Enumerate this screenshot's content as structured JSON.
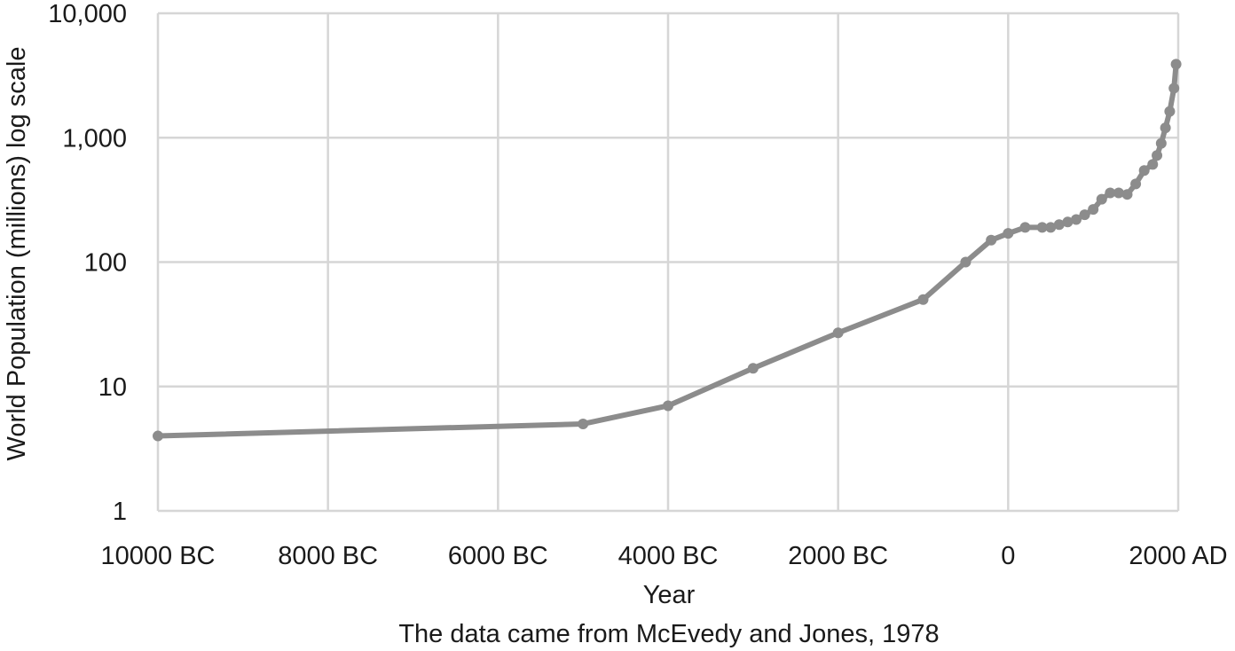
{
  "chart_data": {
    "type": "line",
    "title": "",
    "xlabel": "Year",
    "ylabel": "World Population (millions) log scale",
    "note": "The data came from McEvedy and Jones, 1978",
    "y_scale": "log",
    "ylim": [
      1,
      10000
    ],
    "xlim": [
      -10000,
      2000
    ],
    "grid": true,
    "legend": "none",
    "x_ticks": [
      {
        "value": -10000,
        "label": "10000 BC"
      },
      {
        "value": -8000,
        "label": "8000 BC"
      },
      {
        "value": -6000,
        "label": "6000 BC"
      },
      {
        "value": -4000,
        "label": "4000 BC"
      },
      {
        "value": -2000,
        "label": "2000 BC"
      },
      {
        "value": 0,
        "label": "0"
      },
      {
        "value": 2000,
        "label": "2000 AD"
      }
    ],
    "y_ticks": [
      {
        "value": 1,
        "label": "1"
      },
      {
        "value": 10,
        "label": "10"
      },
      {
        "value": 100,
        "label": "100"
      },
      {
        "value": 1000,
        "label": "1,000"
      },
      {
        "value": 10000,
        "label": "10,000"
      }
    ],
    "colors": {
      "series": "#8c8c8c",
      "grid": "#d6d6d6",
      "text": "#1a1a1a"
    },
    "series": [
      {
        "x": [
          -10000,
          -5000,
          -4000,
          -3000,
          -2000,
          -1000,
          -500,
          -200,
          0,
          200,
          400,
          500,
          600,
          700,
          800,
          900,
          1000,
          1100,
          1200,
          1300,
          1400,
          1500,
          1600,
          1700,
          1750,
          1800,
          1850,
          1900,
          1950,
          1975
        ],
        "y": [
          4,
          5,
          7,
          14,
          27,
          50,
          100,
          150,
          170,
          190,
          190,
          190,
          200,
          210,
          220,
          240,
          265,
          320,
          360,
          360,
          350,
          425,
          545,
          610,
          720,
          900,
          1200,
          1625,
          2500,
          3900
        ]
      }
    ]
  }
}
